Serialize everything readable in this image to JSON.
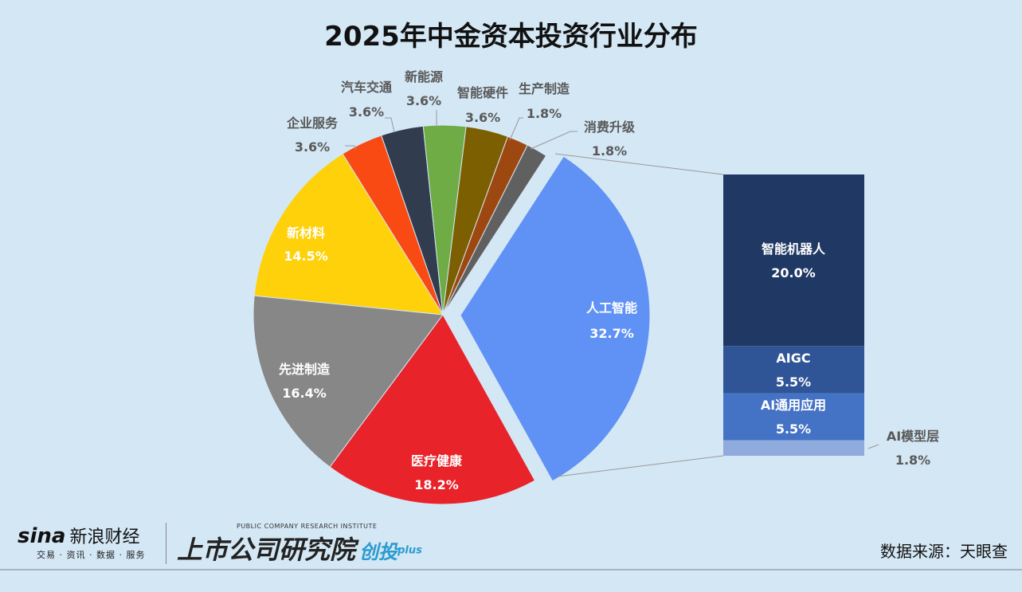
{
  "chart_data": {
    "type": "pie",
    "title": "2025年中金资本投资行业分布",
    "slices": [
      {
        "label": "人工智能",
        "value": 32.7,
        "pct": "32.7%",
        "color": "#6092f5"
      },
      {
        "label": "医疗健康",
        "value": 18.2,
        "pct": "18.2%",
        "color": "#e8242a"
      },
      {
        "label": "先进制造",
        "value": 16.4,
        "pct": "16.4%",
        "color": "#878787"
      },
      {
        "label": "新材料",
        "value": 14.5,
        "pct": "14.5%",
        "color": "#fed10a"
      },
      {
        "label": "企业服务",
        "value": 3.6,
        "pct": "3.6%",
        "color": "#f94a14"
      },
      {
        "label": "汽车交通",
        "value": 3.6,
        "pct": "3.6%",
        "color": "#323c4f"
      },
      {
        "label": "新能源",
        "value": 3.6,
        "pct": "3.6%",
        "color": "#6fac46"
      },
      {
        "label": "智能硬件",
        "value": 3.6,
        "pct": "3.6%",
        "color": "#7c5f00"
      },
      {
        "label": "生产制造",
        "value": 1.8,
        "pct": "1.8%",
        "color": "#9e4811"
      },
      {
        "label": "消费升级",
        "value": 1.8,
        "pct": "1.8%",
        "color": "#606060"
      }
    ],
    "breakdown": {
      "of": "人工智能",
      "type": "stacked-bar",
      "segments": [
        {
          "label": "智能机器人",
          "value": 20.0,
          "pct": "20.0%",
          "color": "#203864"
        },
        {
          "label": "AIGC",
          "value": 5.5,
          "pct": "5.5%",
          "color": "#2f5597"
        },
        {
          "label": "AI通用应用",
          "value": 5.5,
          "pct": "5.5%",
          "color": "#4472c4"
        },
        {
          "label": "AI模型层",
          "value": 1.8,
          "pct": "1.8%",
          "color": "#8faadc"
        }
      ]
    }
  },
  "footer": {
    "source": "数据来源：天眼查",
    "sina_logo": {
      "word": "sina",
      "cn": "新浪财经",
      "sub": "交易 · 资讯 · 数据 · 服务"
    },
    "institute_logo": {
      "en": "PUBLIC COMPANY RESEARCH INSTITUTE",
      "cn": "上市公司研究院",
      "brand": "创投",
      "plus": "plus"
    }
  }
}
